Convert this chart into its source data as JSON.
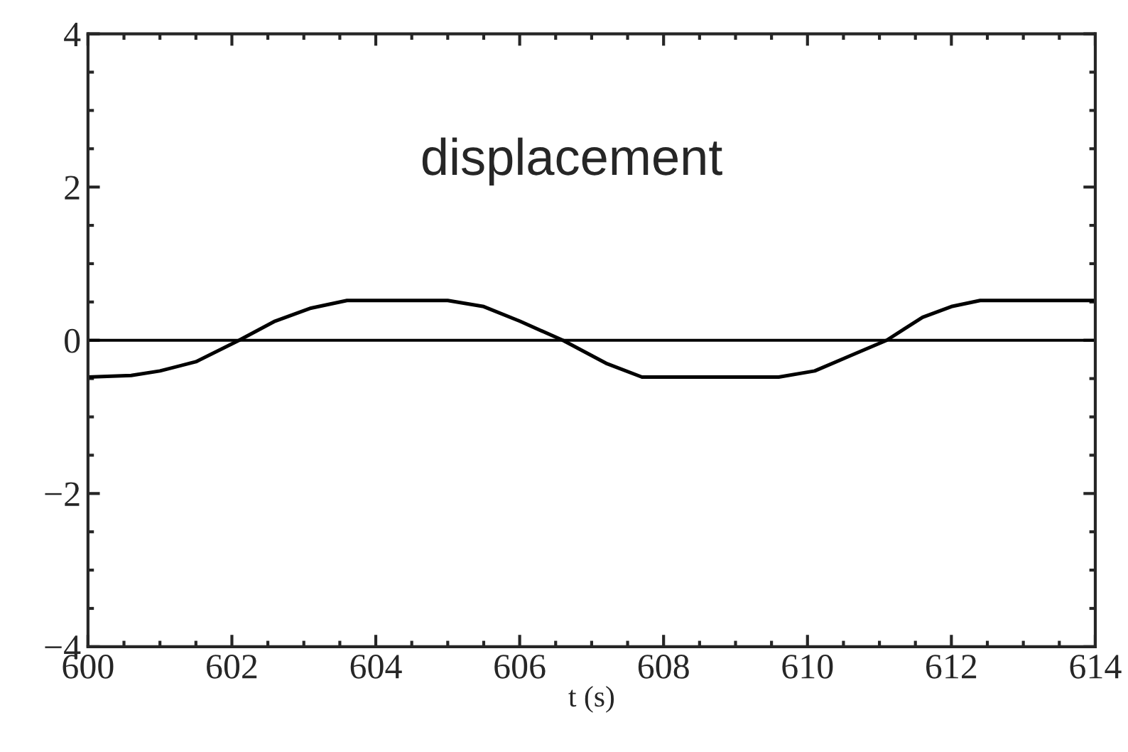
{
  "chart_data": {
    "type": "line",
    "xlabel": "t (s)",
    "annotations": [
      "displacement"
    ],
    "x": [
      600,
      600.6,
      601,
      601.5,
      602.1,
      602.6,
      603.1,
      603.6,
      605.0,
      605.5,
      606.0,
      606.6,
      607.2,
      607.7,
      609.6,
      610.1,
      610.6,
      611.1,
      611.6,
      612.0,
      612.4,
      614
    ],
    "series": [
      {
        "color": "#000000",
        "values": [
          -0.48,
          -0.46,
          -0.4,
          -0.28,
          0,
          0.25,
          0.42,
          0.52,
          0.52,
          0.44,
          0.25,
          0,
          -0.3,
          -0.48,
          -0.48,
          -0.4,
          -0.2,
          0,
          0.3,
          0.44,
          0.52,
          0.52
        ]
      }
    ],
    "xlim": [
      600,
      614
    ],
    "ylim": [
      -4,
      4
    ],
    "xticks": [
      600,
      602,
      604,
      606,
      608,
      610,
      612,
      614
    ],
    "yticks": [
      -4,
      -2,
      0,
      2,
      4
    ],
    "ref_lines": [
      {
        "axis": "y",
        "value": 0,
        "color": "#000000"
      }
    ],
    "grid": false,
    "legend": false,
    "marker": "none",
    "line_style": "solid"
  }
}
